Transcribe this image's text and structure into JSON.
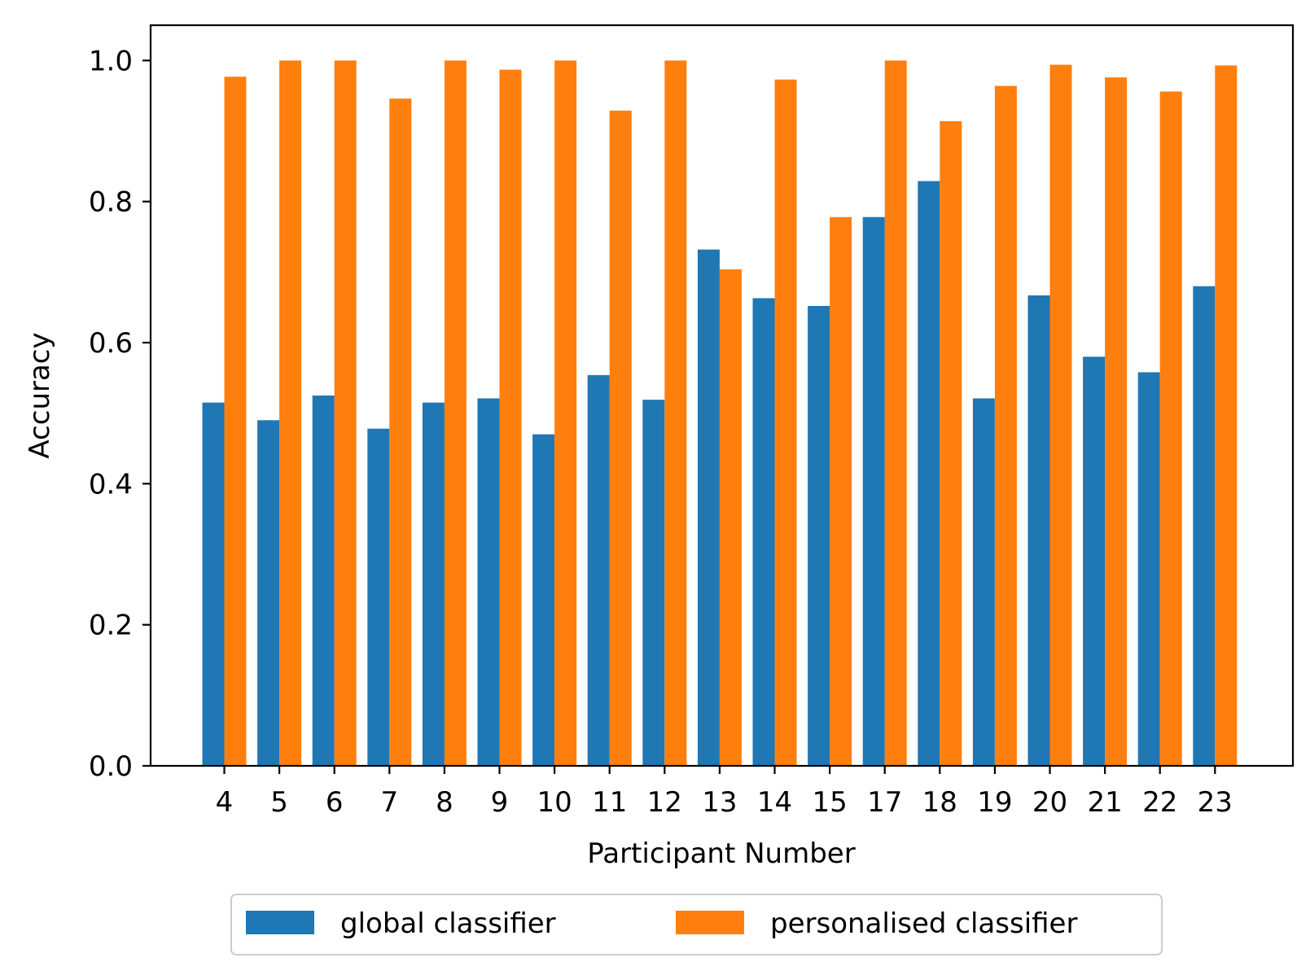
{
  "chart_data": {
    "type": "bar",
    "xlabel": "Participant Number",
    "ylabel": "Accuracy",
    "ylim": [
      0,
      1.05
    ],
    "yticks": [
      "0.0",
      "0.2",
      "0.4",
      "0.6",
      "0.8",
      "1.0"
    ],
    "grid": false,
    "legend_position": "bottom-center",
    "categories": [
      "4",
      "5",
      "6",
      "7",
      "8",
      "9",
      "10",
      "11",
      "12",
      "13",
      "14",
      "15",
      "17",
      "18",
      "19",
      "20",
      "21",
      "22",
      "23"
    ],
    "series": [
      {
        "name": "global classifier",
        "color": "#1f77b4",
        "values": [
          0.515,
          0.49,
          0.525,
          0.478,
          0.515,
          0.521,
          0.47,
          0.554,
          0.519,
          0.732,
          0.663,
          0.652,
          0.778,
          0.829,
          0.521,
          0.667,
          0.58,
          0.558,
          0.68
        ]
      },
      {
        "name": "personalised classifier",
        "color": "#ff7f0e",
        "values": [
          0.977,
          1.0,
          1.0,
          0.946,
          1.0,
          0.987,
          1.0,
          0.929,
          1.0,
          0.704,
          0.973,
          0.778,
          1.0,
          0.914,
          0.964,
          0.994,
          0.976,
          0.956,
          0.993
        ]
      }
    ]
  }
}
